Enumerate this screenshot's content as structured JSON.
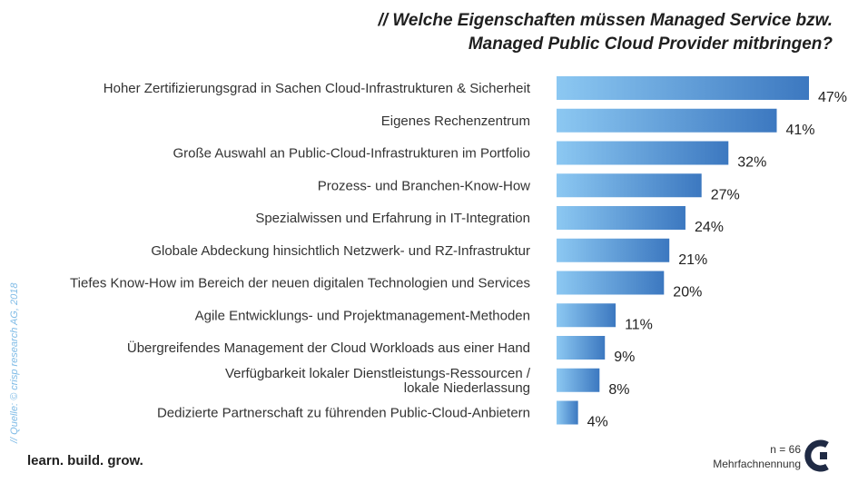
{
  "title_lines": [
    "// Welche Eigenschaften müssen Managed Service bzw.",
    "Managed Public Cloud Provider mitbringen?"
  ],
  "source": "// Quelle: © crisp research AG, 2018",
  "tagline": "learn. build. grow.",
  "sample_size": "n = 66",
  "note": "Mehrfachnennung",
  "logo_icon": "crisp-c-logo-icon",
  "colors": {
    "bar_light": "#8cc8f2",
    "bar_dark": "#3c78c0",
    "source_text": "#7fbbe6"
  },
  "chart_data": {
    "type": "bar",
    "orientation": "horizontal",
    "categories": [
      [
        "Hoher Zertifizierungsgrad in Sachen Cloud-Infrastrukturen & Sicherheit"
      ],
      [
        "Eigenes Rechenzentrum"
      ],
      [
        "Große Auswahl an Public-Cloud-Infrastrukturen im Portfolio"
      ],
      [
        "Prozess- und Branchen-Know-How"
      ],
      [
        "Spezialwissen und Erfahrung in IT-Integration"
      ],
      [
        "Globale Abdeckung hinsichtlich Netzwerk- und RZ-Infrastruktur"
      ],
      [
        "Tiefes Know-How im Bereich der neuen digitalen Technologien und Services"
      ],
      [
        "Agile Entwicklungs- und Projektmanagement-Methoden"
      ],
      [
        "Übergreifendes Management der Cloud Workloads aus einer Hand"
      ],
      [
        "Verfügbarkeit lokaler Dienstleistungs-Ressourcen /",
        "lokale Niederlassung"
      ],
      [
        "Dedizierte Partnerschaft zu führenden Public-Cloud-Anbietern"
      ]
    ],
    "values": [
      47,
      41,
      32,
      27,
      24,
      21,
      20,
      11,
      9,
      8,
      4
    ],
    "value_labels": [
      "47%",
      "41%",
      "32%",
      "27%",
      "24%",
      "21%",
      "20%",
      "11%",
      "9%",
      "8%",
      "4%"
    ],
    "unit": "%",
    "xlim": [
      0,
      47
    ]
  }
}
